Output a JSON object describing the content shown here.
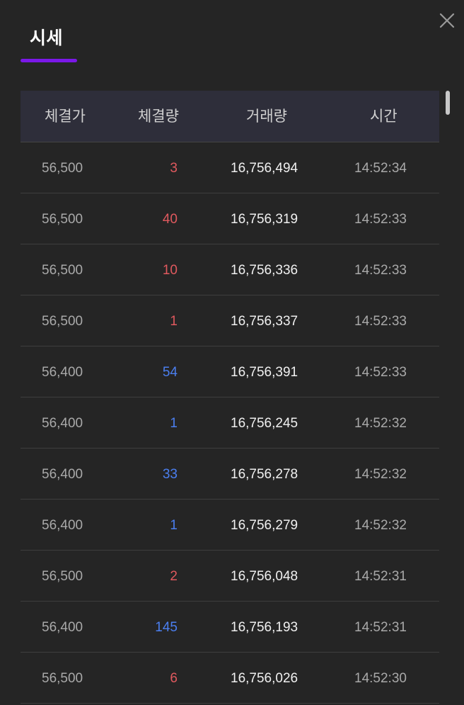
{
  "tabs": [
    {
      "label": "시세",
      "active": true
    }
  ],
  "close_icon": "close-icon",
  "colors": {
    "background": "#252525",
    "header_background": "#2e2e3a",
    "tab_accent": "#7b18e8",
    "up": "#e0595e",
    "down": "#4b7ff0"
  },
  "table": {
    "headers": [
      "체결가",
      "체결량",
      "거래량",
      "시간"
    ],
    "rows": [
      {
        "price": "56,500",
        "qty": "3",
        "dir": "up",
        "volume": "16,756,494",
        "time": "14:52:34"
      },
      {
        "price": "56,500",
        "qty": "40",
        "dir": "up",
        "volume": "16,756,319",
        "time": "14:52:33"
      },
      {
        "price": "56,500",
        "qty": "10",
        "dir": "up",
        "volume": "16,756,336",
        "time": "14:52:33"
      },
      {
        "price": "56,500",
        "qty": "1",
        "dir": "up",
        "volume": "16,756,337",
        "time": "14:52:33"
      },
      {
        "price": "56,400",
        "qty": "54",
        "dir": "down",
        "volume": "16,756,391",
        "time": "14:52:33"
      },
      {
        "price": "56,400",
        "qty": "1",
        "dir": "down",
        "volume": "16,756,245",
        "time": "14:52:32"
      },
      {
        "price": "56,400",
        "qty": "33",
        "dir": "down",
        "volume": "16,756,278",
        "time": "14:52:32"
      },
      {
        "price": "56,400",
        "qty": "1",
        "dir": "down",
        "volume": "16,756,279",
        "time": "14:52:32"
      },
      {
        "price": "56,500",
        "qty": "2",
        "dir": "up",
        "volume": "16,756,048",
        "time": "14:52:31"
      },
      {
        "price": "56,400",
        "qty": "145",
        "dir": "down",
        "volume": "16,756,193",
        "time": "14:52:31"
      },
      {
        "price": "56,500",
        "qty": "6",
        "dir": "up",
        "volume": "16,756,026",
        "time": "14:52:30"
      }
    ]
  }
}
